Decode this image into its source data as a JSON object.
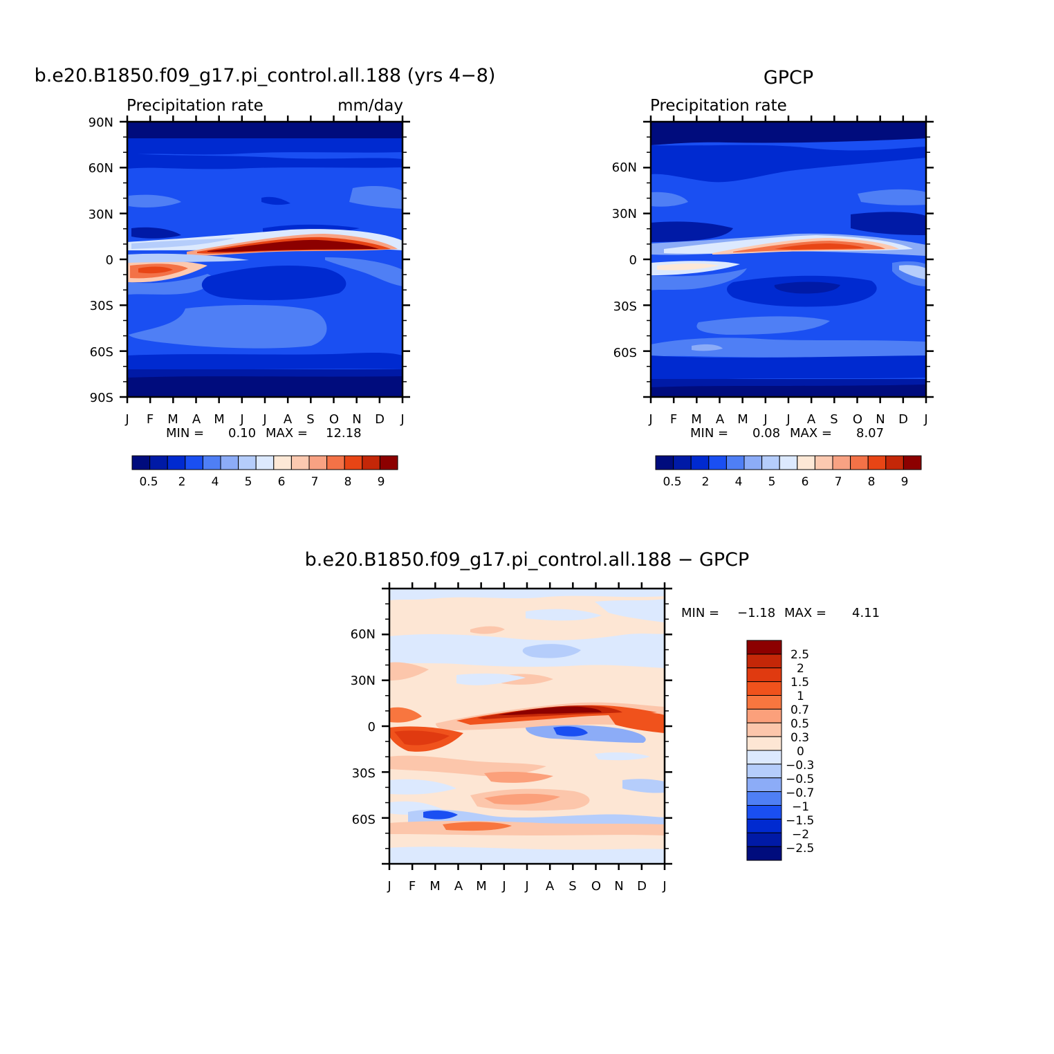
{
  "panels": [
    {
      "id": "model",
      "title": "b.e20.B1850.f09_g17.pi_control.all.188 (yrs 4−8)",
      "left_string": "Precipitation  rate",
      "right_string": "mm/day",
      "ytick_labels": [
        "90N",
        "60N",
        "30N",
        "0",
        "30S",
        "60S",
        "90S"
      ],
      "min_label": "MIN =",
      "min_value": "0.10",
      "max_label": "MAX =",
      "max_value": "12.18"
    },
    {
      "id": "obs",
      "title": "GPCP",
      "left_string": "Precipitation  rate",
      "right_string": "",
      "ytick_labels": [
        "60N",
        "30N",
        "0",
        "30S",
        "60S"
      ],
      "min_label": "MIN =",
      "min_value": "0.08",
      "max_label": "MAX =",
      "max_value": "8.07"
    },
    {
      "id": "diff",
      "title": "b.e20.B1850.f09_g17.pi_control.all.188  −  GPCP",
      "left_string": "",
      "right_string": "",
      "ytick_labels": [
        "60N",
        "30N",
        "0",
        "30S",
        "60S"
      ],
      "min_label": "MIN =",
      "min_value": "−1.18",
      "max_label": "MAX =",
      "max_value": "4.11"
    }
  ],
  "month_labels": [
    "J",
    "F",
    "M",
    "A",
    "M",
    "J",
    "J",
    "A",
    "S",
    "O",
    "N",
    "D",
    "J"
  ],
  "colorbar_abs": {
    "labels": [
      "0.5",
      "2",
      "4",
      "5",
      "6",
      "7",
      "8",
      "9"
    ],
    "colors": [
      "#000c7d",
      "#001aa6",
      "#002ad0",
      "#1a4ff2",
      "#4f7ff5",
      "#8cacf7",
      "#b5cdfb",
      "#dce9fe",
      "#fde8d6",
      "#fcc9b0",
      "#f8a283",
      "#f37247",
      "#e84515",
      "#c42708",
      "#8c0000"
    ]
  },
  "colorbar_diff": {
    "labels": [
      "2.5",
      "2",
      "1.5",
      "1",
      "0.7",
      "0.5",
      "0.3",
      "0",
      "−0.3",
      "−0.5",
      "−0.7",
      "−1",
      "−1.5",
      "−2",
      "−2.5"
    ],
    "colors": [
      "#8c0000",
      "#c42708",
      "#e03a10",
      "#f0521c",
      "#f8763f",
      "#fba07b",
      "#fcc6ab",
      "#fde6d4",
      "#dce9fe",
      "#b5cdfb",
      "#8cacf7",
      "#4f7ff5",
      "#1a4ff2",
      "#002ad0",
      "#001aa6",
      "#000c7d"
    ]
  },
  "chart_data": [
    {
      "type": "heatmap",
      "title": "b.e20.B1850.f09_g17.pi_control.all.188 (yrs 4−8)",
      "subtitle": "Precipitation  rate",
      "units": "mm/day",
      "x": [
        "J",
        "F",
        "M",
        "A",
        "M",
        "J",
        "J",
        "A",
        "S",
        "O",
        "N",
        "D",
        "J"
      ],
      "ylim": [
        -90,
        90
      ],
      "yticks": [
        "90N",
        "60N",
        "30N",
        "0",
        "30S",
        "60S",
        "90S"
      ],
      "levels": [
        0.5,
        1,
        2,
        3,
        4,
        4.5,
        5,
        5.5,
        6,
        6.5,
        7,
        7.5,
        8,
        9
      ],
      "min": 0.1,
      "max": 12.18,
      "features": [
        {
          "name": "ITCZ",
          "lat": [
            5,
            12
          ],
          "max_month": "Aug",
          "value": 12
        },
        {
          "name": "SH convergence (Feb)",
          "lat": [
            -10,
            -5
          ],
          "value": 7
        }
      ]
    },
    {
      "type": "heatmap",
      "title": "GPCP",
      "subtitle": "Precipitation  rate",
      "x": [
        "J",
        "F",
        "M",
        "A",
        "M",
        "J",
        "J",
        "A",
        "S",
        "O",
        "N",
        "D",
        "J"
      ],
      "ylim": [
        -90,
        90
      ],
      "yticks": [
        "60N",
        "30N",
        "0",
        "30S",
        "60S"
      ],
      "levels": [
        0.5,
        1,
        2,
        3,
        4,
        4.5,
        5,
        5.5,
        6,
        6.5,
        7,
        7.5,
        8,
        9
      ],
      "min": 0.08,
      "max": 8.07,
      "features": [
        {
          "name": "ITCZ",
          "lat": [
            5,
            12
          ],
          "max_month": "Aug",
          "value": 8
        }
      ]
    },
    {
      "type": "heatmap",
      "title": "b.e20.B1850.f09_g17.pi_control.all.188  −  GPCP",
      "x": [
        "J",
        "F",
        "M",
        "A",
        "M",
        "J",
        "J",
        "A",
        "S",
        "O",
        "N",
        "D",
        "J"
      ],
      "ylim": [
        -90,
        90
      ],
      "yticks": [
        "60N",
        "30N",
        "0",
        "30S",
        "60S"
      ],
      "levels": [
        -2.5,
        -2,
        -1.5,
        -1,
        -0.7,
        -0.5,
        -0.3,
        0,
        0.3,
        0.5,
        0.7,
        1,
        1.5,
        2,
        2.5
      ],
      "min": -1.18,
      "max": 4.11
    }
  ]
}
